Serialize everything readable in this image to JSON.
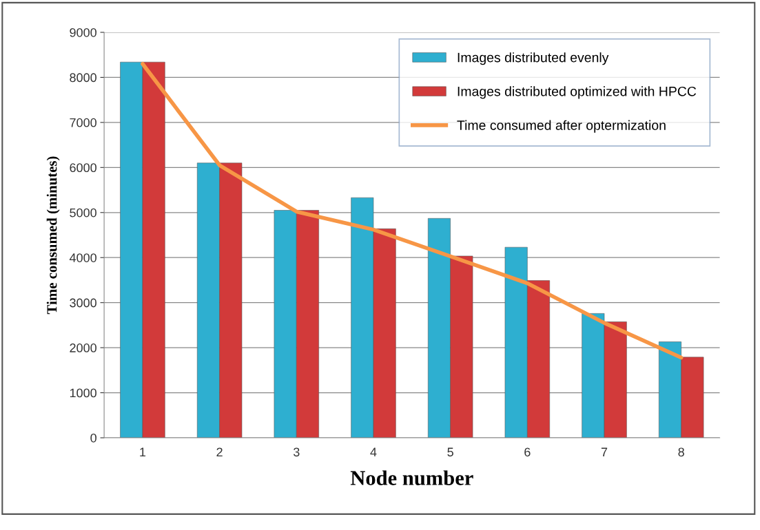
{
  "chart_data": {
    "type": "bar",
    "xlabel": "Node number",
    "ylabel": "Time consumed (minutes)",
    "categories": [
      "1",
      "2",
      "3",
      "4",
      "5",
      "6",
      "7",
      "8"
    ],
    "series": [
      {
        "name": "Images distributed evenly",
        "color": "#2eafd0",
        "values": [
          8340,
          6100,
          5050,
          5330,
          4870,
          4230,
          2760,
          2130
        ]
      },
      {
        "name": "Images distributed optimized with HPCC",
        "color": "#d23a3a",
        "values": [
          8340,
          6100,
          5050,
          4640,
          4035,
          3490,
          2575,
          1790
        ]
      },
      {
        "name": "Time consumed after optermization",
        "type": "line",
        "color": "#f79646",
        "values": [
          8300,
          6050,
          5020,
          4620,
          4030,
          3430,
          2550,
          1780
        ]
      }
    ],
    "ylim": [
      0,
      9000
    ],
    "yticks": [
      0,
      1000,
      2000,
      3000,
      4000,
      5000,
      6000,
      7000,
      8000,
      9000
    ],
    "grid": "y",
    "legend": "top right"
  }
}
